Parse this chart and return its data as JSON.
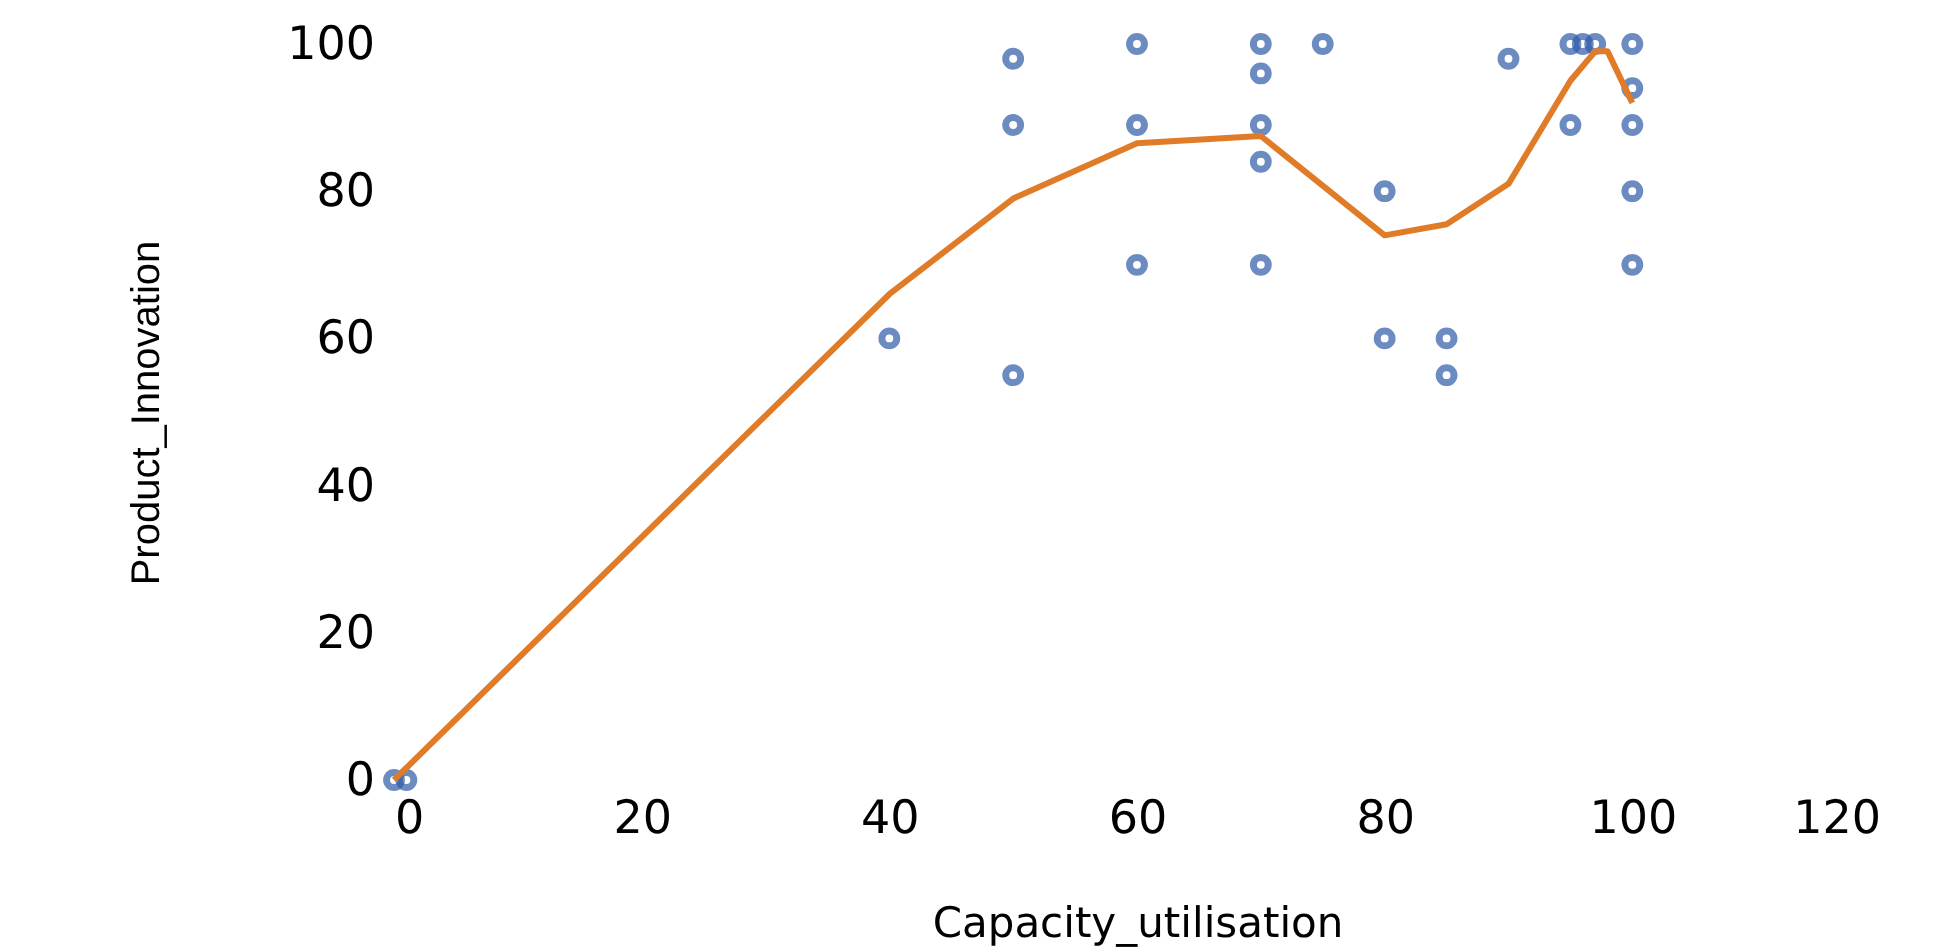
{
  "chart_data": {
    "type": "scatter",
    "xlabel": "Capacity_utilisation",
    "ylabel": "Product_Innovation",
    "xlim": [
      0,
      120
    ],
    "xticks": [
      0,
      20,
      40,
      60,
      80,
      100,
      120
    ],
    "ylim": [
      0,
      100
    ],
    "yticks": [
      0,
      20,
      40,
      60,
      80,
      100
    ],
    "grid": false,
    "legend": false,
    "series": [
      {
        "color": "#2e5ca8",
        "marker": "circle",
        "x": [
          0,
          1,
          40,
          50,
          50,
          50,
          60,
          60,
          60,
          70,
          70,
          70,
          70,
          70,
          75,
          80,
          80,
          85,
          85,
          90,
          95,
          95,
          96,
          97,
          100,
          100,
          100,
          100,
          100
        ],
        "values": [
          0,
          0,
          60,
          55,
          89,
          98,
          100,
          89,
          70,
          100,
          96,
          89,
          84,
          70,
          100,
          80,
          60,
          60,
          55,
          98,
          100,
          89,
          100,
          100,
          100,
          94,
          89,
          80,
          70
        ]
      },
      {
        "type": "line",
        "color": "#e07b28",
        "marker": "none",
        "line_style": "solid",
        "x": [
          0,
          40,
          50,
          60,
          70,
          80,
          85,
          90,
          95,
          97,
          98,
          100
        ],
        "values": [
          0,
          66,
          79,
          86.5,
          87.5,
          74,
          75.5,
          81,
          95,
          99,
          99,
          92
        ]
      }
    ]
  }
}
